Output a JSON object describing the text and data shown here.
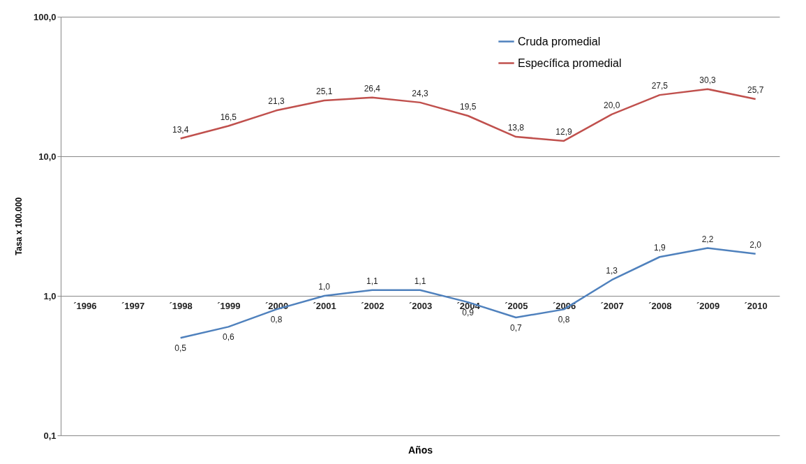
{
  "chart_data": {
    "type": "line",
    "xlabel": "Años",
    "ylabel": "Tasa x 100.000",
    "categories": [
      "´1996",
      "´1997",
      "´1998",
      "´1999",
      "´2000",
      "´2001",
      "´2002",
      "´2003",
      "´2004",
      "´2005",
      "´2006",
      "´2007",
      "´2008",
      "´2009",
      "´2010"
    ],
    "series": [
      {
        "name": "Cruda promedial",
        "color": "#4f81bd",
        "values": [
          null,
          null,
          0.5,
          0.6,
          0.8,
          1.0,
          1.1,
          1.1,
          0.9,
          0.7,
          0.8,
          1.3,
          1.9,
          2.2,
          2.0
        ],
        "value_labels": [
          null,
          null,
          "0,5",
          "0,6",
          "0,8",
          "1,0",
          "1,1",
          "1,1",
          "0,9",
          "0,7",
          "0,8",
          "1,3",
          "1,9",
          "2,2",
          "2,0"
        ]
      },
      {
        "name": "Específica promedial",
        "color": "#c0504d",
        "values": [
          null,
          null,
          13.4,
          16.5,
          21.3,
          25.1,
          26.4,
          24.3,
          19.5,
          13.8,
          12.9,
          20.0,
          27.5,
          30.3,
          25.7
        ],
        "value_labels": [
          null,
          null,
          "13,4",
          "16,5",
          "21,3",
          "25,1",
          "26,4",
          "24,3",
          "19,5",
          "13,8",
          "12,9",
          "20,0",
          "27,5",
          "30,3",
          "25,7"
        ]
      }
    ],
    "log": true,
    "ylim": [
      0.1,
      100
    ],
    "yticks": [
      {
        "value": 0.1,
        "label": "0,1"
      },
      {
        "value": 1,
        "label": "1,0"
      },
      {
        "value": 10,
        "label": "10,0"
      },
      {
        "value": 100,
        "label": "100,0"
      }
    ],
    "grid": "y",
    "legend": "top right",
    "marker": "none",
    "line_style": "solid"
  }
}
